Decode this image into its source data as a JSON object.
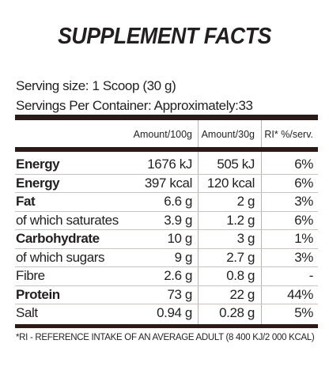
{
  "title": "SUPPLEMENT FACTS",
  "serving": {
    "size": "Serving size: 1 Scoop (30 g)",
    "per_container": "Servings Per Container: Approximately:33"
  },
  "table": {
    "header": [
      "Amount/100g",
      "Amount/30g",
      "RI* %/serv."
    ],
    "rows": [
      [
        "Energy",
        "1676 kJ",
        "505 kJ",
        "6%"
      ],
      [
        "Energy",
        "397 kcal",
        "120 kcal",
        "6%"
      ],
      [
        "Fat",
        "6.6 g",
        "2 g",
        "3%"
      ],
      [
        "of which saturates",
        "3.9 g",
        "1.2 g",
        "6%"
      ],
      [
        "Carbohydrate",
        "10 g",
        "3 g",
        "1%"
      ],
      [
        "of which sugars",
        "9 g",
        "2.7 g",
        "3%"
      ],
      [
        "Fibre",
        "2.6 g",
        "0.8 g",
        "-"
      ],
      [
        "Protein",
        "73 g",
        "22 g",
        "44%"
      ],
      [
        "Salt",
        "0.94 g",
        "0.28 g",
        "5%"
      ]
    ]
  },
  "footnote": "*RI - REFERENCE INTAKE OF AN AVERAGE ADULT (8 400 KJ/2 000 KCAL)"
}
